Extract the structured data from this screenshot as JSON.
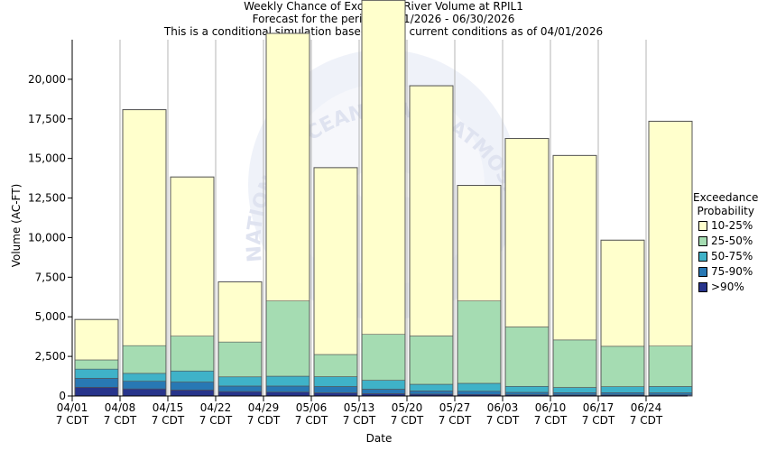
{
  "header": {
    "title_line1": "Weekly Chance of Exceeding River Volume at RPIL1",
    "title_line2": "Forecast for the period 04/01/2026 - 06/30/2026",
    "title_line3": "This is a conditional simulation based on the current conditions as of 04/01/2026"
  },
  "watermark": {
    "text": "NATIONAL OCEANIC AND ATMOSPHERIC ADMINISTRATION",
    "logo": "noaa"
  },
  "chart_data": {
    "type": "bar",
    "subtype": "stacked",
    "title": "Weekly Chance of Exceeding River Volume at RPIL1",
    "xlabel": "Date",
    "ylabel": "Volume (AC-FT)",
    "ylim": [
      0,
      22500
    ],
    "yticks": [
      0,
      2500,
      5000,
      7500,
      10000,
      12500,
      15000,
      17500,
      20000
    ],
    "ytick_labels": [
      "0",
      "2,500",
      "5,000",
      "7,500",
      "10,000",
      "12,500",
      "15,000",
      "17,500",
      "20,000"
    ],
    "categories": [
      "04/01",
      "04/08",
      "04/15",
      "04/22",
      "04/29",
      "05/06",
      "05/13",
      "05/20",
      "05/27",
      "06/03",
      "06/10",
      "06/17",
      "06/24"
    ],
    "category_sublabel": "7 CDT",
    "legend_title": "Exceedance Probability",
    "series": [
      {
        "name": ">90%",
        "color": "#27348b",
        "values": [
          550,
          450,
          380,
          280,
          250,
          200,
          150,
          120,
          100,
          80,
          70,
          70,
          70
        ]
      },
      {
        "name": "75-90%",
        "color": "#2878b4",
        "values": [
          570,
          480,
          500,
          350,
          380,
          400,
          280,
          200,
          200,
          150,
          140,
          140,
          130
        ]
      },
      {
        "name": "50-75%",
        "color": "#3fb2c8",
        "values": [
          580,
          500,
          700,
          580,
          620,
          620,
          560,
          420,
          500,
          380,
          330,
          380,
          400
        ]
      },
      {
        "name": "25-50%",
        "color": "#a5dcb2",
        "values": [
          580,
          1750,
          2200,
          2200,
          4750,
          1400,
          2900,
          3050,
          5200,
          3750,
          3000,
          2550,
          2550
        ]
      },
      {
        "name": "10-25%",
        "color": "#ffffcc",
        "values": [
          2550,
          14900,
          10050,
          3800,
          16900,
          11800,
          21100,
          15800,
          7300,
          11900,
          11650,
          6700,
          14200
        ]
      }
    ],
    "legend_order": [
      "10-25%",
      "25-50%",
      "50-75%",
      "75-90%",
      ">90%"
    ],
    "grid": "vertical-category",
    "legend_placement": "right"
  }
}
